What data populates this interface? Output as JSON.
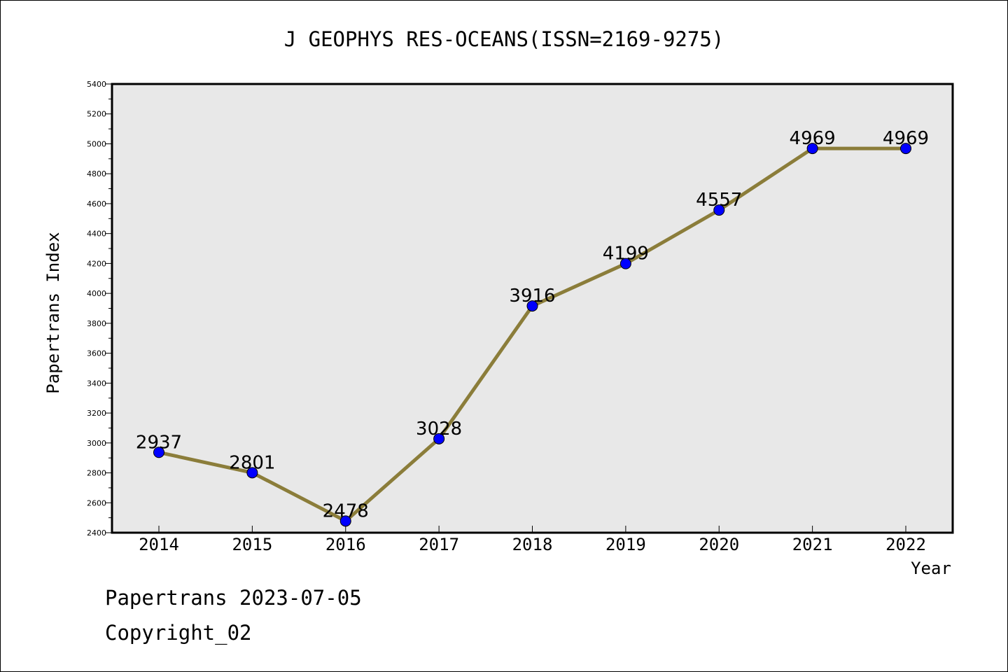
{
  "chart_data": {
    "type": "line",
    "title": "J GEOPHYS RES-OCEANS(ISSN=2169-9275)",
    "xlabel": "Year",
    "ylabel": "Papertrans Index",
    "categories": [
      "2014",
      "2015",
      "2016",
      "2017",
      "2018",
      "2019",
      "2020",
      "2021",
      "2022"
    ],
    "values": [
      2937,
      2801,
      2478,
      3028,
      3916,
      4199,
      4557,
      4969,
      4969
    ],
    "ylim": [
      2400,
      5400
    ],
    "yticks": [
      2400,
      2600,
      2800,
      3000,
      3200,
      3400,
      3600,
      3800,
      4000,
      4200,
      4400,
      4600,
      4800,
      5000,
      5200,
      5400
    ],
    "line_color": "#8b7d3a",
    "marker_color": "#0000ff",
    "plot_background": "#e8e8e8",
    "grid": false
  },
  "footer": {
    "date_line": "Papertrans 2023-07-05",
    "copyright_line": "Copyright_02"
  }
}
